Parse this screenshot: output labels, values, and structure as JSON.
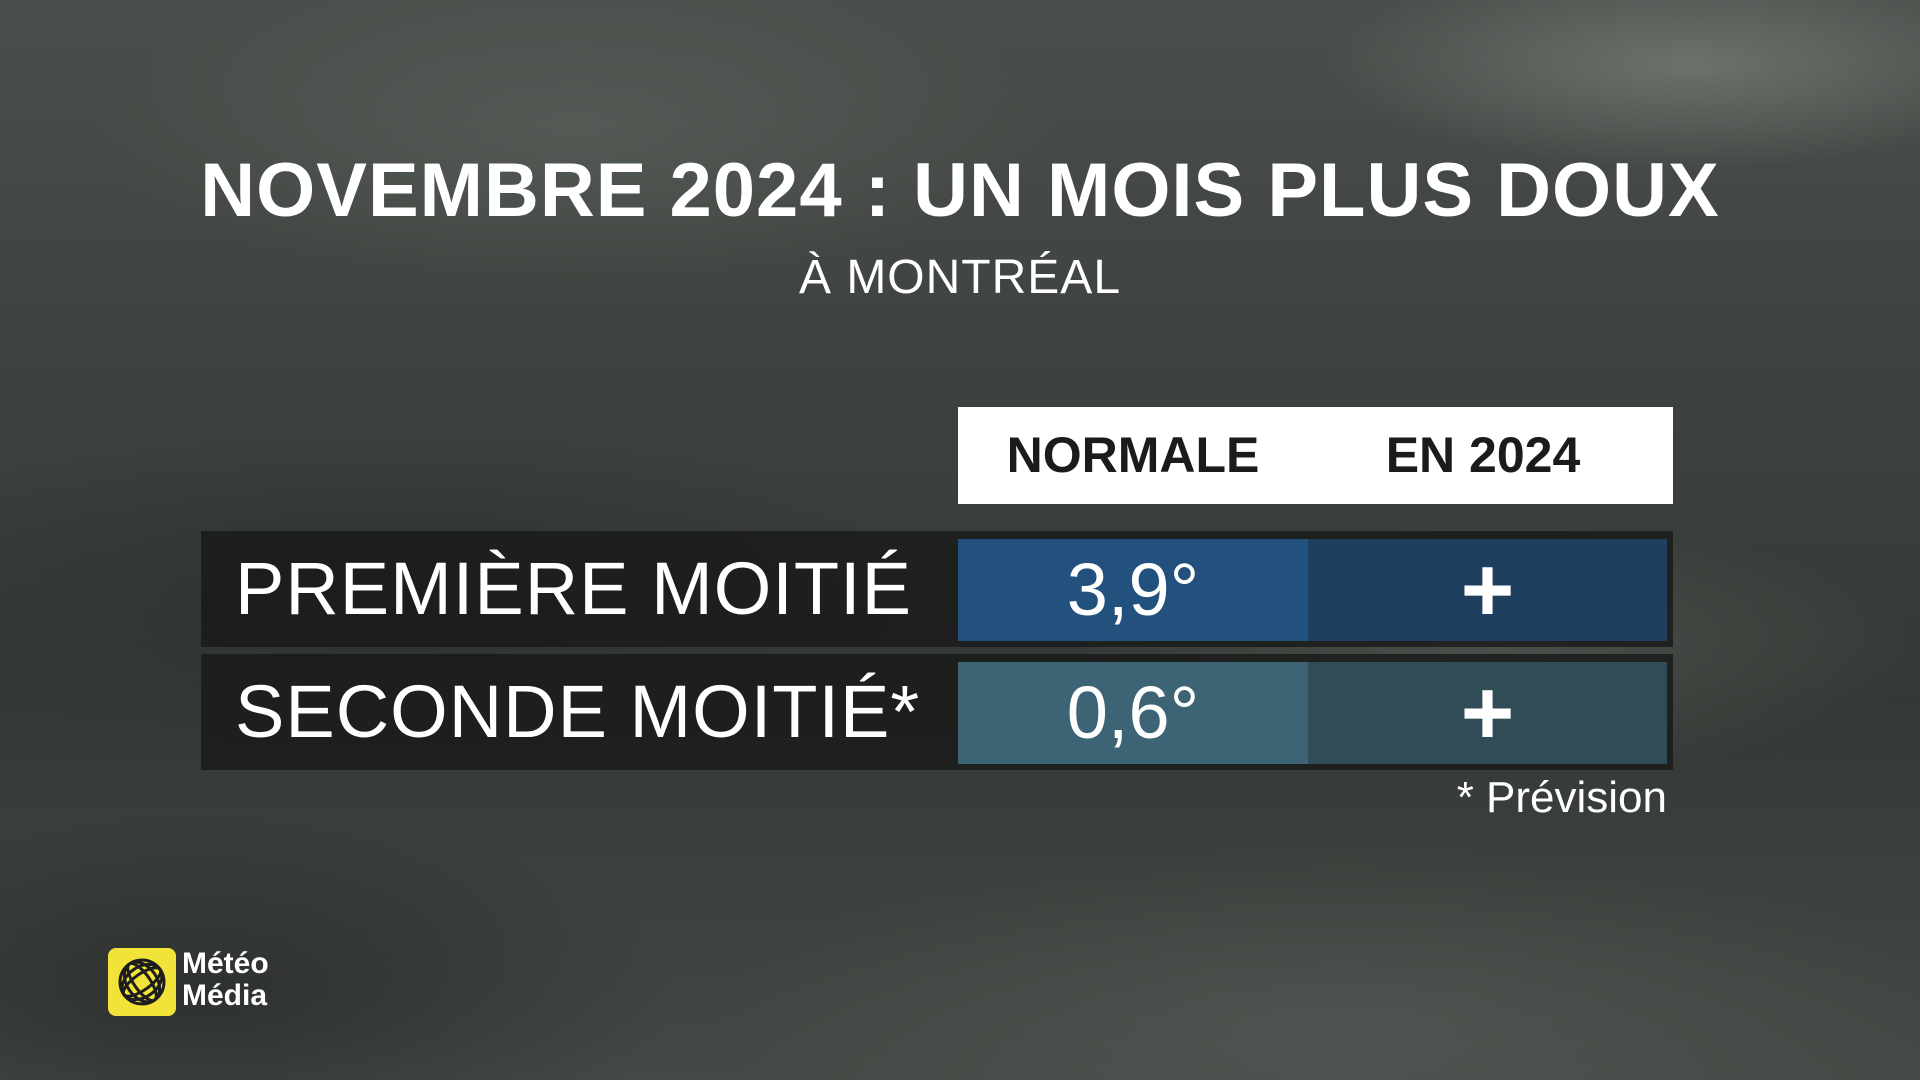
{
  "title": "NOVEMBRE 2024 : UN MOIS PLUS DOUX",
  "subtitle": "À MONTRÉAL",
  "table": {
    "headers": {
      "normale": "NORMALE",
      "annee": "EN 2024"
    },
    "rows": [
      {
        "label": "PREMIÈRE MOITIÉ",
        "normale": "3,9°",
        "annee": "+"
      },
      {
        "label": "SECONDE MOITIÉ*",
        "normale": "0,6°",
        "annee": "+"
      }
    ]
  },
  "footnote": "* Prévision",
  "logo": {
    "line1": "Météo",
    "line2": "Média",
    "icon": "meteomedia-globe-icon",
    "color": "#f2e33a"
  },
  "colors": {
    "row1_normale": "#23517e",
    "row1_annee": "#1f3f5f",
    "row2_normale": "#3d6474",
    "row2_annee": "#2f4c57"
  }
}
